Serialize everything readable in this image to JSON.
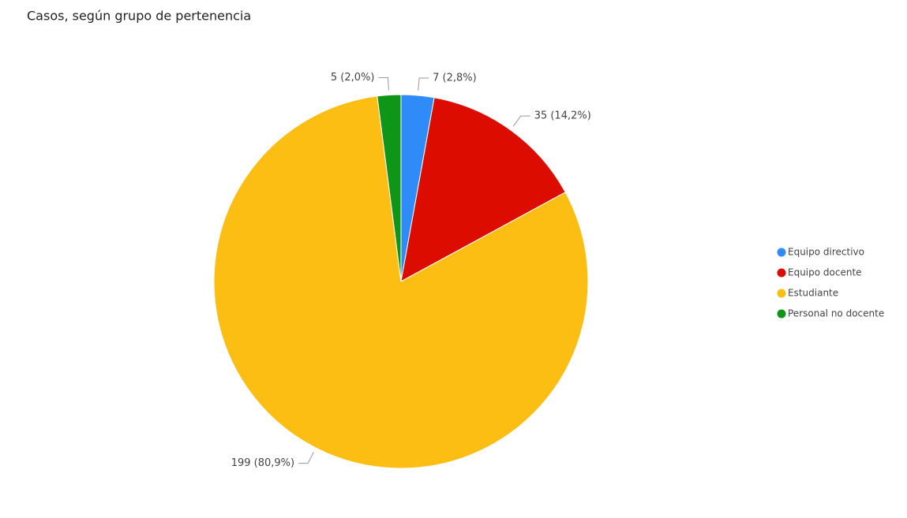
{
  "chart_data": {
    "type": "pie",
    "title": "Casos, según grupo de pertenencia",
    "categories": [
      "Equipo directivo",
      "Equipo docente",
      "Estudiante",
      "Personal no docente"
    ],
    "values": [
      7,
      35,
      199,
      5
    ],
    "value_labels": [
      "7 (2,8%)",
      "35 (14,2%)",
      "199 (80,9%)",
      "5 (2,0%)"
    ],
    "colors": [
      "#2e8bf8",
      "#dc0c00",
      "#fdbe13",
      "#0f9618"
    ],
    "legend": "right"
  }
}
